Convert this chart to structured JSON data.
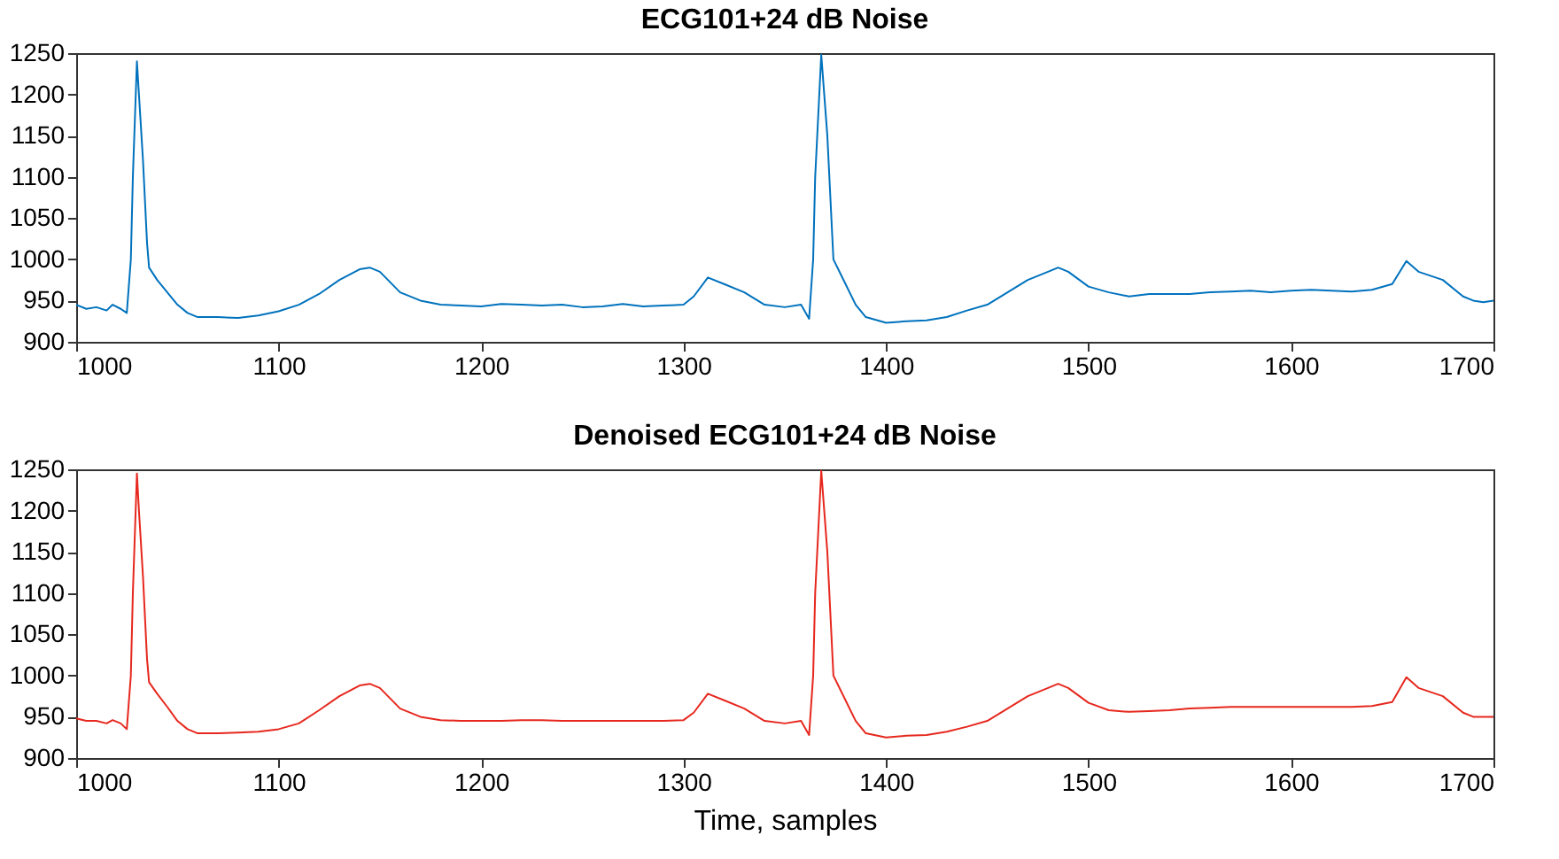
{
  "chart_data": [
    {
      "type": "line",
      "title": "ECG101+24 dB Noise",
      "x": [
        1000,
        1005,
        1010,
        1015,
        1018,
        1022,
        1025,
        1027,
        1028,
        1030,
        1031,
        1033,
        1035,
        1036,
        1040,
        1045,
        1050,
        1055,
        1060,
        1070,
        1080,
        1090,
        1100,
        1110,
        1120,
        1130,
        1140,
        1145,
        1150,
        1160,
        1170,
        1180,
        1190,
        1200,
        1210,
        1220,
        1230,
        1240,
        1250,
        1260,
        1270,
        1280,
        1290,
        1300,
        1305,
        1312,
        1320,
        1330,
        1340,
        1350,
        1358,
        1362,
        1364,
        1365,
        1368,
        1371,
        1373,
        1374,
        1378,
        1385,
        1390,
        1400,
        1410,
        1420,
        1430,
        1440,
        1450,
        1460,
        1470,
        1480,
        1485,
        1490,
        1500,
        1510,
        1520,
        1530,
        1540,
        1550,
        1560,
        1570,
        1580,
        1590,
        1600,
        1610,
        1620,
        1630,
        1640,
        1650,
        1657,
        1663,
        1675,
        1685,
        1690,
        1695,
        1700
      ],
      "series": [
        {
          "color": "#0072bd",
          "values": [
            945,
            940,
            942,
            938,
            945,
            940,
            935,
            1000,
            1100,
            1240,
            1200,
            1120,
            1020,
            990,
            975,
            960,
            945,
            935,
            930,
            930,
            929,
            932,
            937,
            945,
            958,
            975,
            988,
            990,
            985,
            960,
            950,
            945,
            944,
            943,
            946,
            945,
            944,
            945,
            942,
            943,
            946,
            943,
            944,
            945,
            955,
            978,
            970,
            960,
            945,
            942,
            945,
            928,
            1000,
            1100,
            1248,
            1150,
            1050,
            1000,
            980,
            945,
            930,
            923,
            925,
            926,
            930,
            938,
            945,
            960,
            975,
            985,
            990,
            985,
            967,
            960,
            955,
            958,
            958,
            958,
            960,
            961,
            962,
            960,
            962,
            963,
            962,
            961,
            963,
            970,
            998,
            985,
            975,
            955,
            950,
            948,
            950
          ]
        }
      ],
      "xlim": [
        1000,
        1700
      ],
      "ylim": [
        900,
        1250
      ],
      "xticks": [
        1000,
        1100,
        1200,
        1300,
        1400,
        1500,
        1600,
        1700
      ],
      "yticks": [
        900,
        950,
        1000,
        1050,
        1100,
        1150,
        1200,
        1250
      ],
      "grid": false
    },
    {
      "type": "line",
      "title": "Denoised ECG101+24 dB Noise",
      "xlabel": "Time, samples",
      "x": [
        1000,
        1005,
        1010,
        1015,
        1018,
        1022,
        1025,
        1027,
        1028,
        1030,
        1031,
        1033,
        1035,
        1036,
        1040,
        1045,
        1050,
        1055,
        1060,
        1070,
        1080,
        1090,
        1100,
        1110,
        1120,
        1130,
        1140,
        1145,
        1150,
        1160,
        1170,
        1180,
        1190,
        1200,
        1210,
        1220,
        1230,
        1240,
        1250,
        1260,
        1270,
        1280,
        1290,
        1300,
        1305,
        1312,
        1320,
        1330,
        1340,
        1350,
        1358,
        1362,
        1364,
        1365,
        1368,
        1371,
        1373,
        1374,
        1378,
        1385,
        1390,
        1400,
        1410,
        1420,
        1430,
        1440,
        1450,
        1460,
        1470,
        1480,
        1485,
        1490,
        1500,
        1510,
        1520,
        1530,
        1540,
        1550,
        1560,
        1570,
        1580,
        1590,
        1600,
        1610,
        1620,
        1630,
        1640,
        1650,
        1657,
        1663,
        1675,
        1685,
        1690,
        1695,
        1700
      ],
      "series": [
        {
          "color": "#e6281e",
          "values": [
            948,
            945,
            945,
            942,
            946,
            942,
            935,
            1000,
            1100,
            1245,
            1200,
            1120,
            1020,
            992,
            978,
            962,
            945,
            935,
            930,
            930,
            931,
            932,
            935,
            942,
            958,
            975,
            988,
            990,
            985,
            960,
            950,
            946,
            945,
            945,
            945,
            946,
            946,
            945,
            945,
            945,
            945,
            945,
            945,
            946,
            955,
            978,
            970,
            960,
            945,
            942,
            945,
            928,
            1000,
            1100,
            1248,
            1150,
            1050,
            1000,
            980,
            945,
            930,
            925,
            927,
            928,
            932,
            938,
            945,
            960,
            975,
            985,
            990,
            985,
            967,
            958,
            956,
            957,
            958,
            960,
            961,
            962,
            962,
            962,
            962,
            962,
            962,
            962,
            963,
            968,
            998,
            985,
            975,
            955,
            950,
            950,
            950
          ]
        }
      ],
      "xlim": [
        1000,
        1700
      ],
      "ylim": [
        900,
        1250
      ],
      "xticks": [
        1000,
        1100,
        1200,
        1300,
        1400,
        1500,
        1600,
        1700
      ],
      "yticks": [
        900,
        950,
        1000,
        1050,
        1100,
        1150,
        1200,
        1250
      ],
      "grid": false
    }
  ]
}
